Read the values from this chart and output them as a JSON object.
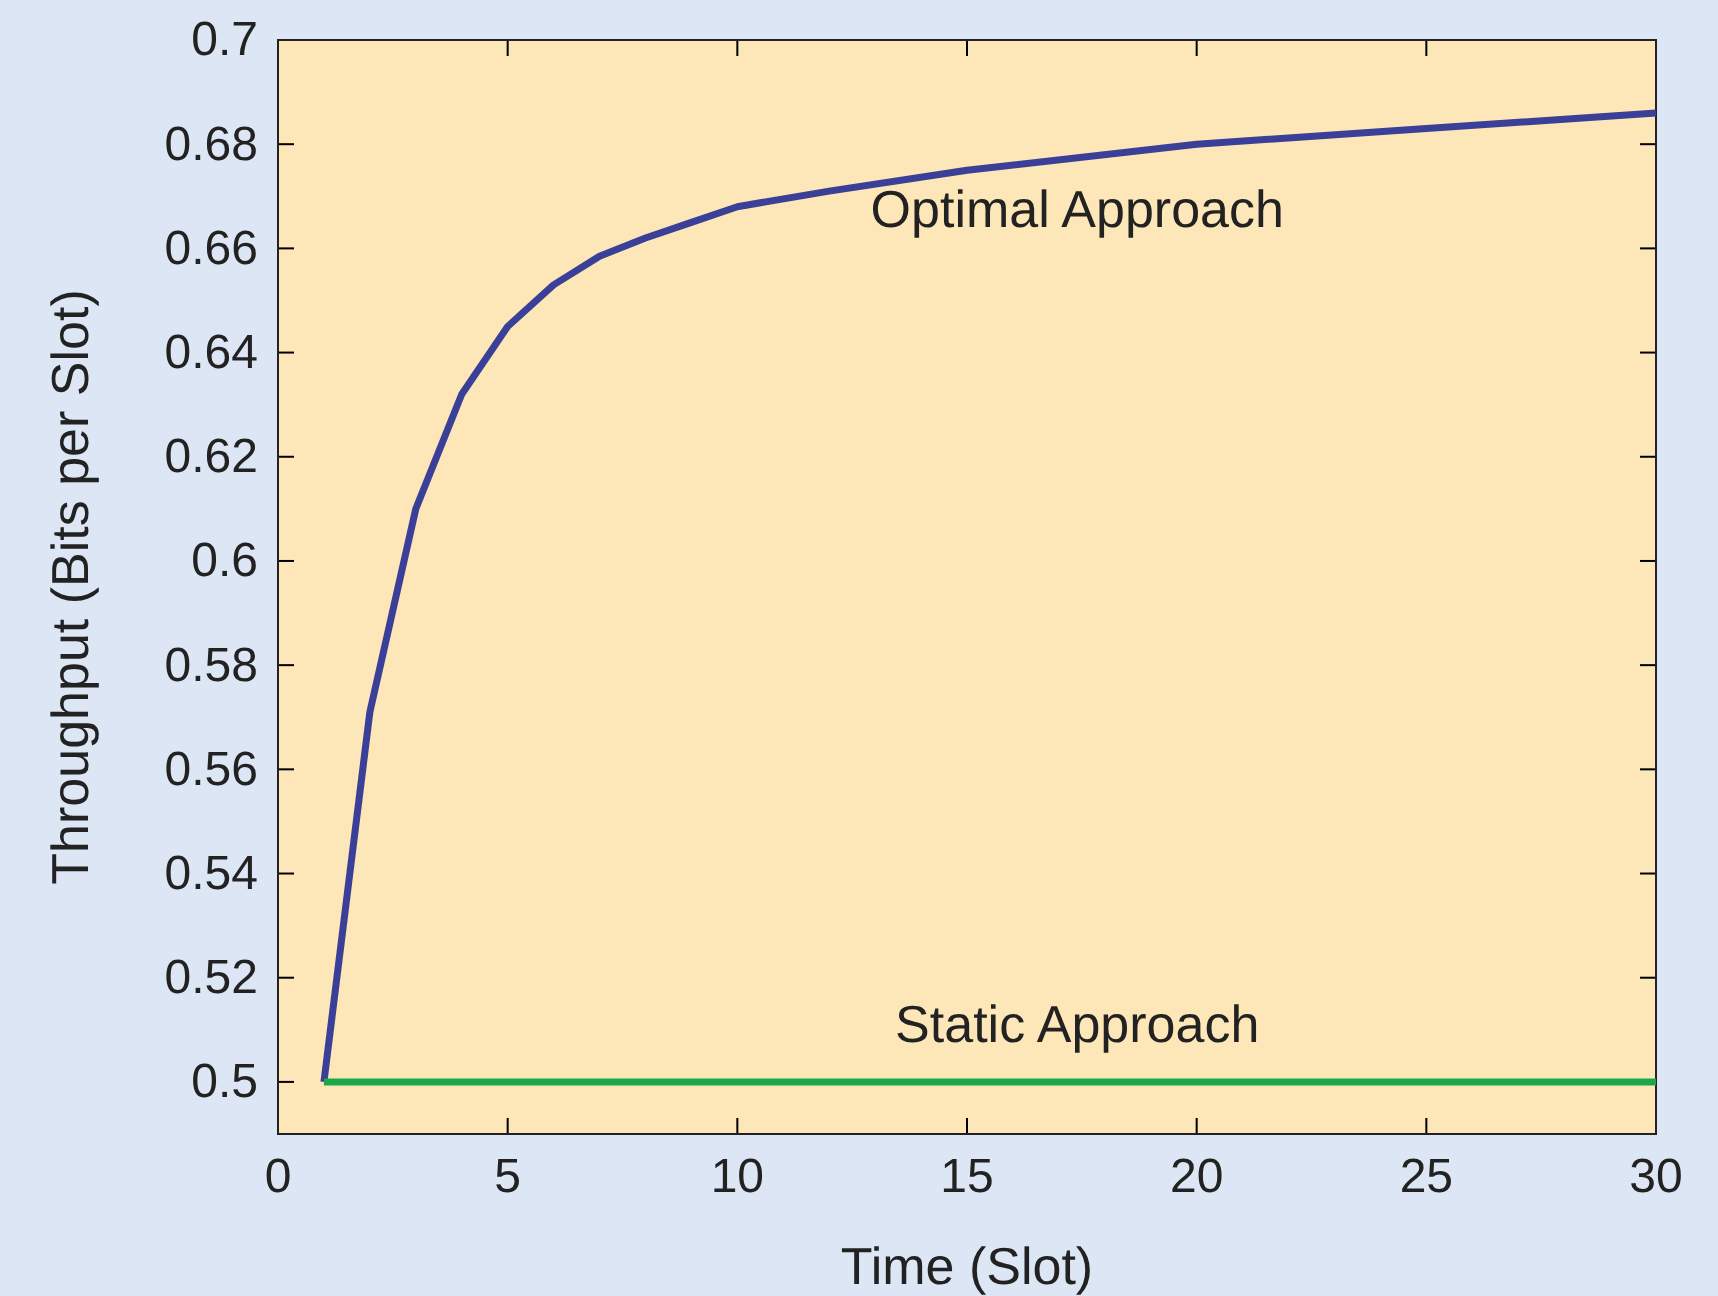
{
  "chart_data": {
    "type": "line",
    "xlabel": "Time (Slot)",
    "ylabel": "Throughput (Bits per Slot)",
    "xlim": [
      0,
      30
    ],
    "ylim": [
      0.49,
      0.7
    ],
    "xticks": [
      0,
      5,
      10,
      15,
      20,
      25,
      30
    ],
    "yticks": [
      0.5,
      0.52,
      0.54,
      0.56,
      0.58,
      0.6,
      0.62,
      0.64,
      0.66,
      0.68,
      0.7
    ],
    "grid": false,
    "marker": "none",
    "line_style": "solid",
    "series": [
      {
        "name": "Optimal Approach",
        "color": "#3a3f98",
        "x": [
          1,
          2,
          3,
          4,
          5,
          6,
          7,
          8,
          9,
          10,
          12,
          15,
          20,
          25,
          30
        ],
        "values": [
          0.5,
          0.571,
          0.61,
          0.632,
          0.645,
          0.653,
          0.6585,
          0.662,
          0.665,
          0.668,
          0.671,
          0.675,
          0.68,
          0.683,
          0.686
        ]
      },
      {
        "name": "Static Approach",
        "color": "#1aa84a",
        "x": [
          1,
          30
        ],
        "values": [
          0.5,
          0.5
        ]
      }
    ]
  }
}
